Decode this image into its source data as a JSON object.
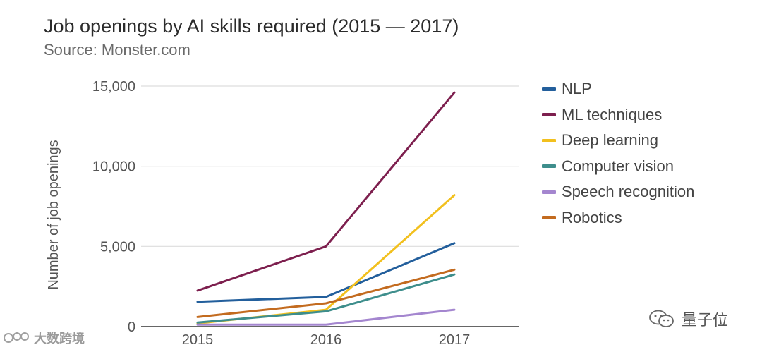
{
  "chart_data": {
    "type": "line",
    "title": "Job openings by AI skills required (2015 — 2017)",
    "subtitle": "Source: Monster.com",
    "xlabel": "",
    "ylabel": "Number of job openings",
    "categories": [
      "2015",
      "2016",
      "2017"
    ],
    "yticks": [
      0,
      5000,
      10000,
      15000
    ],
    "ytick_labels": [
      "0",
      "5,000",
      "10,000",
      "15,000"
    ],
    "ylim": [
      0,
      15000
    ],
    "grid": true,
    "legend_position": "right",
    "series": [
      {
        "name": "NLP",
        "color": "#235f9c",
        "values": [
          1550,
          1850,
          5200
        ]
      },
      {
        "name": "ML techniques",
        "color": "#7d1f4e",
        "values": [
          2250,
          5000,
          14600
        ]
      },
      {
        "name": "Deep learning",
        "color": "#f2c01e",
        "values": [
          200,
          1050,
          8200
        ]
      },
      {
        "name": "Computer vision",
        "color": "#3e8e8c",
        "values": [
          250,
          950,
          3250
        ]
      },
      {
        "name": "Speech recognition",
        "color": "#a486cf",
        "values": [
          120,
          120,
          1050
        ]
      },
      {
        "name": "Robotics",
        "color": "#c36b1f",
        "values": [
          600,
          1450,
          3550
        ]
      }
    ]
  },
  "watermark_left": "大数跨境",
  "watermark_right": "量子位"
}
